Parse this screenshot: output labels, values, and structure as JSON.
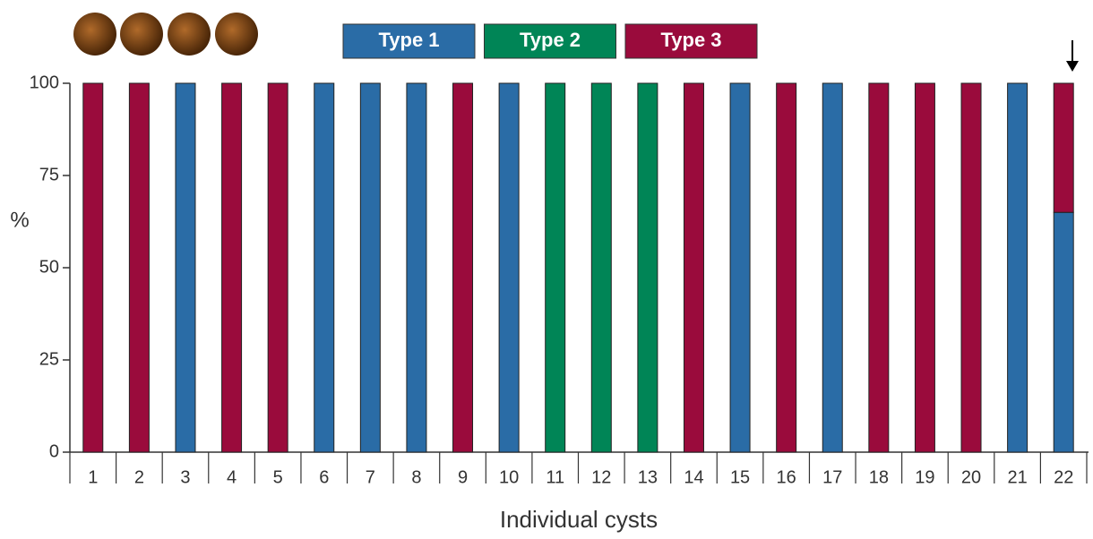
{
  "chart_data": {
    "type": "stacked_bar",
    "y_label": "%",
    "x_label": "Individual cysts",
    "categories": [
      "1",
      "2",
      "3",
      "4",
      "5",
      "6",
      "7",
      "8",
      "9",
      "10",
      "11",
      "12",
      "13",
      "14",
      "15",
      "16",
      "17",
      "18",
      "19",
      "20",
      "21",
      "22"
    ],
    "series": [
      {
        "name": "Type 1",
        "color": "#2a6ca6",
        "values": [
          0,
          0,
          100,
          0,
          0,
          100,
          100,
          100,
          0,
          100,
          0,
          0,
          0,
          0,
          100,
          0,
          100,
          0,
          0,
          0,
          100,
          65
        ]
      },
      {
        "name": "Type 2",
        "color": "#008556",
        "values": [
          0,
          0,
          0,
          0,
          0,
          0,
          0,
          0,
          0,
          0,
          100,
          100,
          100,
          0,
          0,
          0,
          0,
          0,
          0,
          0,
          0,
          0
        ]
      },
      {
        "name": "Type 3",
        "color": "#9a0b3c",
        "values": [
          100,
          100,
          0,
          100,
          100,
          0,
          0,
          0,
          100,
          0,
          0,
          0,
          0,
          100,
          0,
          100,
          0,
          100,
          100,
          100,
          0,
          35
        ]
      }
    ],
    "ylim": [
      0,
      100
    ],
    "yticks": [
      0,
      25,
      50,
      75,
      100
    ],
    "grid": false
  }
}
